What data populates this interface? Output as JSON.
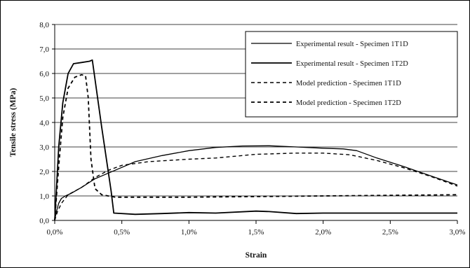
{
  "chart_data": {
    "type": "line",
    "title": "",
    "xlabel": "Strain",
    "ylabel": "Tensile stress (MPa)",
    "xlim": [
      0,
      3.0
    ],
    "ylim": [
      0,
      8
    ],
    "x_unit": "%",
    "grid": "horizontal",
    "legend_position": "top-right",
    "x_ticks": [
      "0,0%",
      "0,5%",
      "1,0%",
      "1,5%",
      "2,0%",
      "2,5%",
      "3,0%"
    ],
    "y_ticks": [
      "0,0",
      "1,0",
      "2,0",
      "3,0",
      "4,0",
      "5,0",
      "6,0",
      "7,0",
      "8,0"
    ],
    "series": [
      {
        "name": "Experimental result - Specimen 1T1D",
        "style": "solid",
        "width": 1.3,
        "x": [
          0,
          0.01,
          0.03,
          0.05,
          0.08,
          0.12,
          0.2,
          0.3,
          0.45,
          0.6,
          0.8,
          1.0,
          1.2,
          1.4,
          1.6,
          1.8,
          2.0,
          2.15,
          2.25,
          2.4,
          2.6,
          2.8,
          3.0
        ],
        "y": [
          0,
          0.3,
          0.7,
          0.9,
          1.0,
          1.1,
          1.35,
          1.7,
          2.05,
          2.4,
          2.65,
          2.85,
          2.98,
          3.04,
          3.05,
          3.0,
          2.95,
          2.92,
          2.85,
          2.55,
          2.2,
          1.82,
          1.45
        ]
      },
      {
        "name": "Experimental result - Specimen 1T2D",
        "style": "solid",
        "width": 1.8,
        "x": [
          0,
          0.03,
          0.06,
          0.1,
          0.14,
          0.2,
          0.26,
          0.28,
          0.35,
          0.42,
          0.44,
          0.6,
          0.8,
          1.0,
          1.2,
          1.5,
          1.6,
          1.8,
          2.0,
          2.5,
          3.0
        ],
        "y": [
          0,
          3.0,
          4.8,
          6.0,
          6.4,
          6.45,
          6.5,
          6.55,
          3.8,
          1.2,
          0.3,
          0.25,
          0.28,
          0.32,
          0.3,
          0.38,
          0.36,
          0.28,
          0.3,
          0.3,
          0.3
        ]
      },
      {
        "name": "Model prediction - Specimen 1T1D",
        "style": "dashed",
        "width": 1.4,
        "x": [
          0,
          0.02,
          0.05,
          0.1,
          0.2,
          0.3,
          0.4,
          0.5,
          0.7,
          1.0,
          1.2,
          1.5,
          1.8,
          2.0,
          2.2,
          2.4,
          2.6,
          2.8,
          3.0
        ],
        "y": [
          0,
          0.35,
          0.7,
          1.05,
          1.35,
          1.75,
          2.05,
          2.25,
          2.4,
          2.5,
          2.55,
          2.7,
          2.75,
          2.75,
          2.68,
          2.45,
          2.15,
          1.8,
          1.4
        ]
      },
      {
        "name": "Model prediction - Specimen 1T2D",
        "style": "dashed",
        "width": 1.8,
        "x": [
          0,
          0.03,
          0.06,
          0.1,
          0.15,
          0.2,
          0.23,
          0.25,
          0.27,
          0.3,
          0.35,
          0.45,
          1.0,
          2.0,
          3.0
        ],
        "y": [
          0,
          2.2,
          4.2,
          5.4,
          5.85,
          5.95,
          5.9,
          5.0,
          2.5,
          1.3,
          1.05,
          0.95,
          0.95,
          1.0,
          1.05
        ]
      }
    ]
  }
}
